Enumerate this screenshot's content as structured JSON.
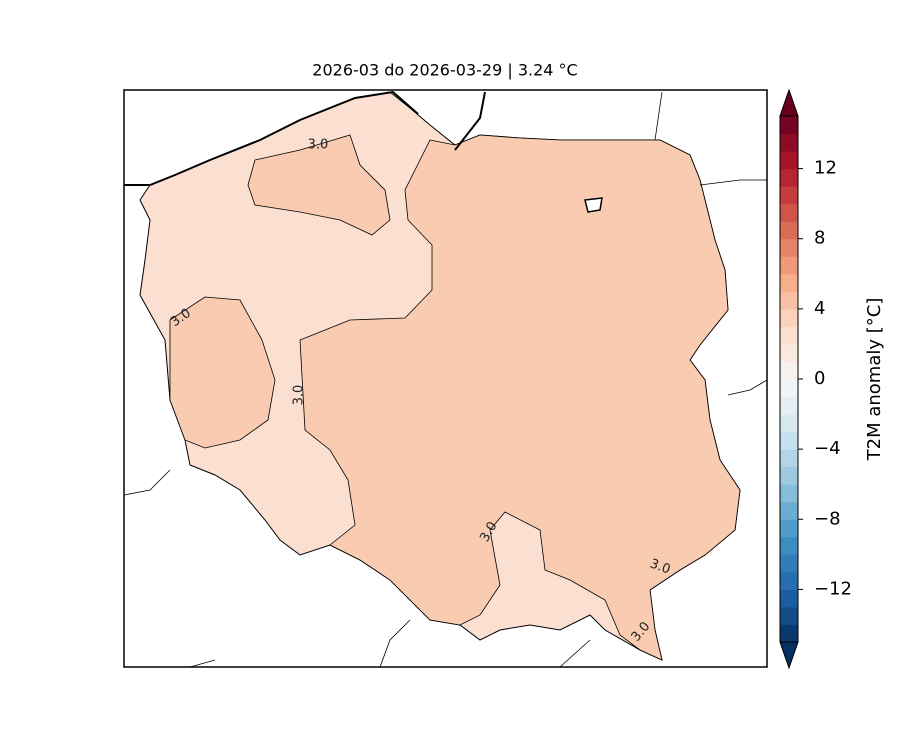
{
  "chart_data": {
    "type": "map",
    "title": "2026-03 do 2026-03-29 | 3.24 °C",
    "colorbar_label": "T2M anomaly [°C]",
    "colormap": "RdBu_r",
    "clim": [
      -15,
      15
    ],
    "cticks": [
      {
        "value": -12,
        "label": "−12"
      },
      {
        "value": -8,
        "label": "−8"
      },
      {
        "value": -4,
        "label": "−4"
      },
      0,
      4,
      8,
      12
    ],
    "contour_labels": [
      "3.0",
      "3.0",
      "3.0",
      "3.0",
      "3.0",
      "3.0"
    ]
  }
}
